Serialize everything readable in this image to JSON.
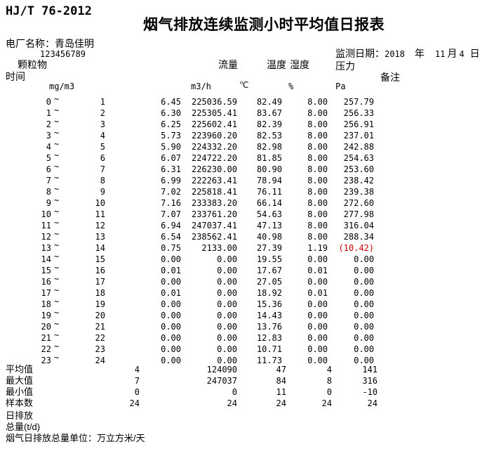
{
  "page": {
    "doc_code": "HJ/T 76-2012",
    "title": "烟气排放连续监测小时平均值日报表",
    "plant": {
      "label": "电厂名称：",
      "name": "青岛佳明",
      "mark": "`",
      "code": "123456789"
    },
    "date": {
      "label": "监测日期：",
      "year": "2018",
      "year_unit": "年",
      "month": "11",
      "month_unit": "月",
      "day": "4",
      "day_unit": "日"
    }
  },
  "columns": {
    "time": "时间",
    "particulate": "颗粒物",
    "flow": "流量",
    "temperature": "温度",
    "humidity": "湿度",
    "pressure": "压力",
    "remark": "备注"
  },
  "units": {
    "particulate": "mg/m3",
    "flow": "m3/h",
    "temperature": "℃",
    "humidity": "%",
    "pressure": "Pa"
  },
  "tilde": "~",
  "rows": [
    {
      "from": "0",
      "to": "1",
      "pm": "6.45",
      "flow": "225036.59",
      "temp": "82.49",
      "hum": "8.00",
      "press": "257.79",
      "alarm": false
    },
    {
      "from": "1",
      "to": "2",
      "pm": "6.30",
      "flow": "225305.41",
      "temp": "83.67",
      "hum": "8.00",
      "press": "256.33",
      "alarm": false
    },
    {
      "from": "2",
      "to": "3",
      "pm": "6.25",
      "flow": "225602.41",
      "temp": "82.39",
      "hum": "8.00",
      "press": "256.91",
      "alarm": false
    },
    {
      "from": "3",
      "to": "4",
      "pm": "5.73",
      "flow": "223960.20",
      "temp": "82.53",
      "hum": "8.00",
      "press": "237.01",
      "alarm": false
    },
    {
      "from": "4",
      "to": "5",
      "pm": "5.90",
      "flow": "224332.20",
      "temp": "82.98",
      "hum": "8.00",
      "press": "242.88",
      "alarm": false
    },
    {
      "from": "5",
      "to": "6",
      "pm": "6.07",
      "flow": "224722.20",
      "temp": "81.85",
      "hum": "8.00",
      "press": "254.63",
      "alarm": false
    },
    {
      "from": "6",
      "to": "7",
      "pm": "6.31",
      "flow": "226230.00",
      "temp": "80.90",
      "hum": "8.00",
      "press": "253.60",
      "alarm": false
    },
    {
      "from": "7",
      "to": "8",
      "pm": "6.99",
      "flow": "222263.41",
      "temp": "78.94",
      "hum": "8.00",
      "press": "238.42",
      "alarm": false
    },
    {
      "from": "8",
      "to": "9",
      "pm": "7.02",
      "flow": "225818.41",
      "temp": "76.11",
      "hum": "8.00",
      "press": "239.38",
      "alarm": false
    },
    {
      "from": "9",
      "to": "10",
      "pm": "7.16",
      "flow": "233383.20",
      "temp": "66.14",
      "hum": "8.00",
      "press": "272.60",
      "alarm": false
    },
    {
      "from": "10",
      "to": "11",
      "pm": "7.07",
      "flow": "233761.20",
      "temp": "54.63",
      "hum": "8.00",
      "press": "277.98",
      "alarm": false
    },
    {
      "from": "11",
      "to": "12",
      "pm": "6.94",
      "flow": "247037.41",
      "temp": "47.13",
      "hum": "8.00",
      "press": "316.04",
      "alarm": false
    },
    {
      "from": "12",
      "to": "13",
      "pm": "6.54",
      "flow": "238562.41",
      "temp": "40.98",
      "hum": "8.00",
      "press": "288.34",
      "alarm": false
    },
    {
      "from": "13",
      "to": "14",
      "pm": "0.75",
      "flow": "2133.00",
      "temp": "27.39",
      "hum": "1.19",
      "press": "(10.42)",
      "alarm": true
    },
    {
      "from": "14",
      "to": "15",
      "pm": "0.00",
      "flow": "0.00",
      "temp": "19.55",
      "hum": "0.00",
      "press": "0.00",
      "alarm": false
    },
    {
      "from": "15",
      "to": "16",
      "pm": "0.01",
      "flow": "0.00",
      "temp": "17.67",
      "hum": "0.01",
      "press": "0.00",
      "alarm": false
    },
    {
      "from": "16",
      "to": "17",
      "pm": "0.00",
      "flow": "0.00",
      "temp": "27.05",
      "hum": "0.00",
      "press": "0.00",
      "alarm": false
    },
    {
      "from": "17",
      "to": "18",
      "pm": "0.01",
      "flow": "0.00",
      "temp": "18.92",
      "hum": "0.01",
      "press": "0.00",
      "alarm": false
    },
    {
      "from": "18",
      "to": "19",
      "pm": "0.00",
      "flow": "0.00",
      "temp": "15.36",
      "hum": "0.00",
      "press": "0.00",
      "alarm": false
    },
    {
      "from": "19",
      "to": "20",
      "pm": "0.00",
      "flow": "0.00",
      "temp": "14.43",
      "hum": "0.00",
      "press": "0.00",
      "alarm": false
    },
    {
      "from": "20",
      "to": "21",
      "pm": "0.00",
      "flow": "0.00",
      "temp": "13.76",
      "hum": "0.00",
      "press": "0.00",
      "alarm": false
    },
    {
      "from": "21",
      "to": "22",
      "pm": "0.00",
      "flow": "0.00",
      "temp": "12.83",
      "hum": "0.00",
      "press": "0.00",
      "alarm": false
    },
    {
      "from": "22",
      "to": "23",
      "pm": "0.00",
      "flow": "0.00",
      "temp": "10.71",
      "hum": "0.00",
      "press": "0.00",
      "alarm": false
    },
    {
      "from": "23",
      "to": "24",
      "pm": "0.00",
      "flow": "0.00",
      "temp": "11.73",
      "hum": "0.00",
      "press": "0.00",
      "alarm": false
    }
  ],
  "summary": [
    {
      "label": "平均值",
      "pm": "4",
      "flow": "124090",
      "temp": "47",
      "hum": "4",
      "press": "141"
    },
    {
      "label": "最大值",
      "pm": "7",
      "flow": "247037",
      "temp": "84",
      "hum": "8",
      "press": "316"
    },
    {
      "label": "最小值",
      "pm": "0",
      "flow": "0",
      "temp": "11",
      "hum": "0",
      "press": "-10"
    },
    {
      "label": "样本数",
      "pm": "24",
      "flow": "24",
      "temp": "24",
      "hum": "24",
      "press": "24"
    }
  ],
  "footer": {
    "daily_emission": "日排放",
    "total_label": "总量(t/d)",
    "unit_note": "烟气日排放总量单位：万立方米/天"
  },
  "colors": {
    "text": "#000000",
    "background": "#ffffff",
    "alarm": "#cc0000"
  }
}
